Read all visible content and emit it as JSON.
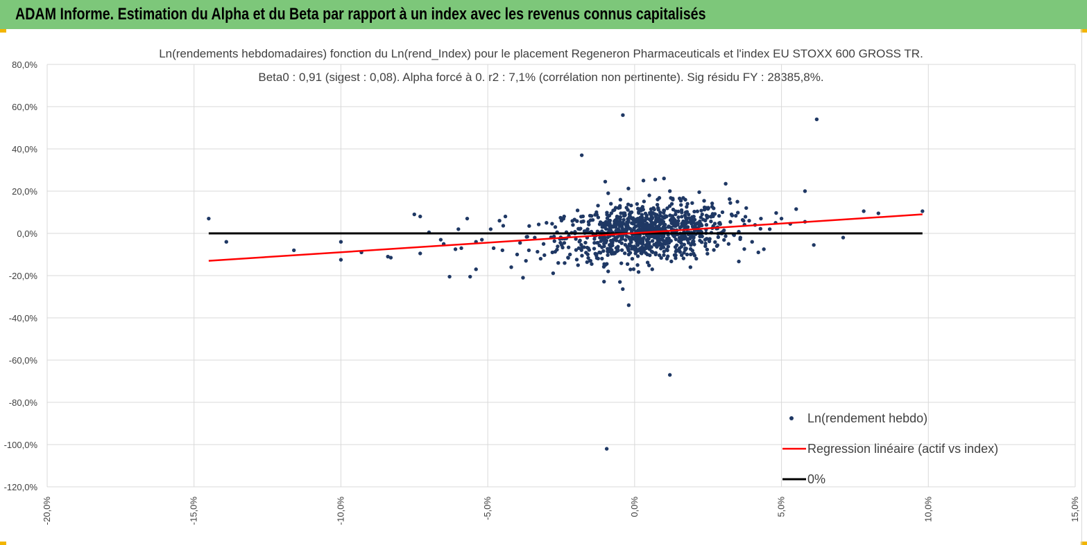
{
  "header": {
    "title": "ADAM Informe. Estimation du Alpha et du Beta par rapport à un index avec les revenus connus capitalisés"
  },
  "colors": {
    "header_bg": "#7dc77a",
    "corner_accent": "#f2b500",
    "points": "#1f3864",
    "regression": "#ff0000",
    "zero_line": "#000000",
    "grid": "#d9d9d9"
  },
  "chart_data": {
    "type": "scatter",
    "title": "Ln(rendements hebdomadaires) fonction du Ln(rend_Index) pour le placement Regeneron Pharmaceuticals et l'index EU STOXX  600 GROSS TR.",
    "subtitle": "Beta0 : 0,91 (sigest : 0,08).  Alpha forcé à 0. r2 : 7,1% (corrélation non pertinente). Sig résidu FY : 28385,8%.",
    "xlabel": "",
    "ylabel": "",
    "xlim": [
      -20,
      15
    ],
    "ylim": [
      -120,
      80
    ],
    "x_ticks": [
      -20,
      -15,
      -10,
      -5,
      0,
      5,
      10,
      15
    ],
    "y_ticks": [
      80,
      60,
      40,
      20,
      0,
      -20,
      -40,
      -60,
      -80,
      -100,
      -120
    ],
    "x_tick_labels": [
      "-20,0%",
      "-15,0%",
      "-10,0%",
      "-5,0%",
      "0,0%",
      "5,0%",
      "10,0%",
      "15,0%"
    ],
    "y_tick_labels": [
      "80,0%",
      "60,0%",
      "40,0%",
      "20,0%",
      "0,0%",
      "-20,0%",
      "-40,0%",
      "-60,0%",
      "-80,0%",
      "-100,0%",
      "-120,0%"
    ],
    "grid": "vertical-and-horizontal",
    "legend_position": "bottom-right",
    "series": [
      {
        "name": "Ln(rendement hebdo)",
        "kind": "scatter",
        "points": [
          [
            -14.5,
            7
          ],
          [
            -13.9,
            -4
          ],
          [
            -11.6,
            -8
          ],
          [
            -10.0,
            -12.5
          ],
          [
            -10.0,
            -4
          ],
          [
            -9.3,
            -9
          ],
          [
            -8.4,
            -11
          ],
          [
            -8.3,
            -11.5
          ],
          [
            -7.5,
            9
          ],
          [
            -7.3,
            8
          ],
          [
            -7.3,
            -9.5
          ],
          [
            -7.0,
            0.5
          ],
          [
            -6.6,
            -3
          ],
          [
            -6.5,
            -5
          ],
          [
            -6.3,
            -20.5
          ],
          [
            -6.1,
            -7.5
          ],
          [
            -6.0,
            2
          ],
          [
            -5.9,
            -7
          ],
          [
            -5.7,
            7
          ],
          [
            -5.6,
            -20.5
          ],
          [
            -5.4,
            -17
          ],
          [
            -5.4,
            -4
          ],
          [
            -5.2,
            -3
          ],
          [
            -4.9,
            2
          ],
          [
            -4.8,
            -7
          ],
          [
            -4.6,
            6
          ],
          [
            -4.5,
            -8
          ],
          [
            -4.4,
            8
          ],
          [
            -4.2,
            -16
          ],
          [
            -4.0,
            -10
          ],
          [
            -3.9,
            -4.5
          ],
          [
            -3.8,
            -21
          ],
          [
            -3.7,
            -13
          ],
          [
            -3.6,
            -8
          ],
          [
            -3.4,
            -2
          ],
          [
            -3.2,
            -12
          ],
          [
            -3.1,
            -5
          ],
          [
            -3.0,
            5
          ],
          [
            -2.8,
            -9
          ],
          [
            -2.7,
            3
          ],
          [
            -2.6,
            -14
          ],
          [
            -2.4,
            8
          ],
          [
            -2.2,
            -10
          ],
          [
            -2.1,
            4
          ],
          [
            -1.9,
            -7
          ],
          [
            -1.8,
            37
          ],
          [
            -1.6,
            2
          ],
          [
            -1.5,
            -13
          ],
          [
            -1.3,
            10
          ],
          [
            -1.2,
            -9
          ],
          [
            -1.1,
            3
          ],
          [
            -1.0,
            24.5
          ],
          [
            -1.0,
            -15
          ],
          [
            -0.9,
            -18
          ],
          [
            -0.9,
            19
          ],
          [
            -0.8,
            -5
          ],
          [
            -0.6,
            8
          ],
          [
            -0.5,
            13
          ],
          [
            -0.5,
            -23
          ],
          [
            -0.4,
            56
          ],
          [
            -0.3,
            4
          ],
          [
            -0.2,
            -10
          ],
          [
            -0.2,
            -34
          ],
          [
            -0.1,
            10
          ],
          [
            0.1,
            -15
          ],
          [
            0.2,
            6
          ],
          [
            0.3,
            25
          ],
          [
            0.4,
            -7
          ],
          [
            0.5,
            18
          ],
          [
            0.6,
            -17
          ],
          [
            0.7,
            25.5
          ],
          [
            0.8,
            12
          ],
          [
            0.9,
            -5
          ],
          [
            1.0,
            26
          ],
          [
            1.1,
            -12
          ],
          [
            1.2,
            -67
          ],
          [
            1.2,
            20
          ],
          [
            1.3,
            16
          ],
          [
            1.5,
            -8
          ],
          [
            1.6,
            11
          ],
          [
            1.7,
            -2
          ],
          [
            1.8,
            14
          ],
          [
            1.9,
            -16
          ],
          [
            2.0,
            6
          ],
          [
            2.1,
            -12
          ],
          [
            2.2,
            19.5
          ],
          [
            2.3,
            9
          ],
          [
            2.4,
            -3
          ],
          [
            2.5,
            12
          ],
          [
            2.6,
            8
          ],
          [
            2.8,
            -6
          ],
          [
            2.9,
            5
          ],
          [
            3.1,
            23.5
          ],
          [
            3.2,
            -5
          ],
          [
            3.3,
            9
          ],
          [
            3.5,
            15
          ],
          [
            3.6,
            -2
          ],
          [
            3.8,
            12
          ],
          [
            3.9,
            6
          ],
          [
            4.0,
            -4
          ],
          [
            4.1,
            4
          ],
          [
            4.3,
            7
          ],
          [
            4.4,
            -7.5
          ],
          [
            4.6,
            2
          ],
          [
            4.8,
            5
          ],
          [
            5.0,
            7
          ],
          [
            5.3,
            4.5
          ],
          [
            5.5,
            11.5
          ],
          [
            5.8,
            20
          ],
          [
            5.8,
            5.5
          ],
          [
            6.1,
            -5.5
          ],
          [
            6.2,
            54
          ],
          [
            7.1,
            -2
          ],
          [
            7.8,
            10.5
          ],
          [
            8.3,
            9.5
          ],
          [
            9.8,
            10.5
          ],
          [
            -0.95,
            -102
          ]
        ],
        "cluster": {
          "x_center": 0.4,
          "x_sd": 1.4,
          "y_center": 0.5,
          "y_sd": 6.5,
          "count": 900
        }
      },
      {
        "name": "Regression linéaire (actif vs index)",
        "kind": "line",
        "x": [
          -14.5,
          9.8
        ],
        "y": [
          -13,
          9
        ]
      },
      {
        "name": "0%",
        "kind": "line",
        "x": [
          -14.5,
          9.8
        ],
        "y": [
          0,
          0
        ]
      }
    ]
  }
}
